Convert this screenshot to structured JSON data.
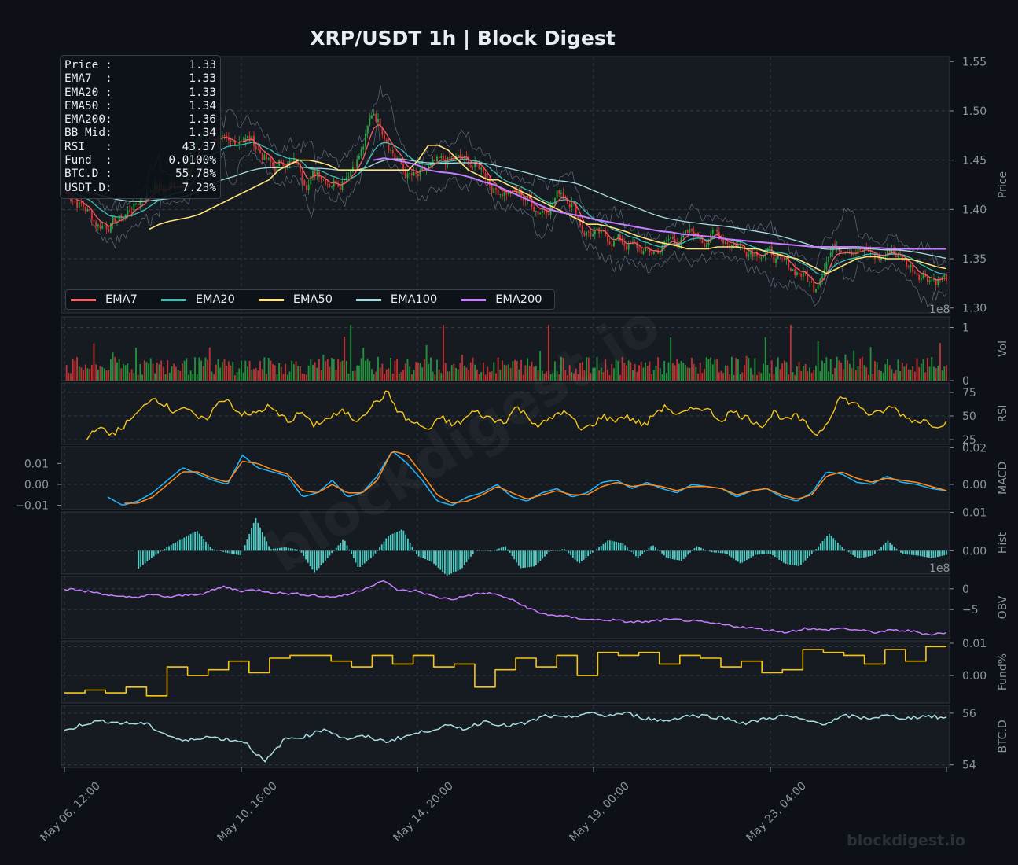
{
  "chart_data": {
    "type": "line",
    "title": "XRP/USDT  1h  |  Block Digest",
    "watermark": "blockdigest.io",
    "x_ticks": [
      "May 06, 12:00",
      "May 10, 16:00",
      "May 14, 20:00",
      "May 19, 00:00",
      "May 23, 04:00"
    ],
    "colors": {
      "background": "#0d1117",
      "panel": "#161b22",
      "grid": "#3a4150",
      "up": "#26a641",
      "down": "#da3633",
      "ema7": "#f85c64",
      "ema20": "#3dbfb0",
      "ema50": "#ffe27a",
      "ema100": "#a8dde0",
      "ema200": "#c77dff",
      "rsi": "#f5c518",
      "macd": "#1fb6ff",
      "signal": "#ff8c1a",
      "hist": "#4ecdc4",
      "obv": "#c77dff",
      "funding": "#f5c518",
      "btcd": "#a8dde0"
    },
    "info": [
      {
        "label": "Price :",
        "value": "1.33"
      },
      {
        "label": "EMA7  :",
        "value": "1.33"
      },
      {
        "label": "EMA20 :",
        "value": "1.33"
      },
      {
        "label": "EMA50 :",
        "value": "1.34"
      },
      {
        "label": "EMA200:",
        "value": "1.36"
      },
      {
        "label": "BB Mid:",
        "value": "1.34"
      },
      {
        "label": "RSI   :",
        "value": "43.37"
      },
      {
        "label": "Fund  :",
        "value": "0.0100%"
      },
      {
        "label": "BTC.D :",
        "value": "55.78%"
      },
      {
        "label": "USDT.D:",
        "value": "7.23%"
      }
    ],
    "legend": [
      "EMA7",
      "EMA20",
      "EMA50",
      "EMA100",
      "EMA200"
    ],
    "panels": {
      "price": {
        "ylabel": "Price",
        "ticks": [
          "1.55",
          "1.50",
          "1.45",
          "1.40",
          "1.35",
          "1.30"
        ],
        "ylim": [
          1.295,
          1.555
        ],
        "offset": "1e8",
        "close": [
          1.42,
          1.41,
          1.4,
          1.385,
          1.385,
          1.39,
          1.4,
          1.41,
          1.425,
          1.42,
          1.425,
          1.435,
          1.47,
          1.48,
          1.47,
          1.46,
          1.475,
          1.47,
          1.455,
          1.44,
          1.45,
          1.445,
          1.43,
          1.44,
          1.43,
          1.43,
          1.445,
          1.46,
          1.5,
          1.48,
          1.455,
          1.435,
          1.43,
          1.44,
          1.445,
          1.45,
          1.45,
          1.445,
          1.44,
          1.42,
          1.42,
          1.415,
          1.41,
          1.4,
          1.405,
          1.42,
          1.41,
          1.38,
          1.375,
          1.37,
          1.37,
          1.365,
          1.36,
          1.355,
          1.36,
          1.37,
          1.37,
          1.375,
          1.37,
          1.375,
          1.37,
          1.365,
          1.36,
          1.36,
          1.355,
          1.345,
          1.34,
          1.335,
          1.32,
          1.35,
          1.365,
          1.365,
          1.36,
          1.355,
          1.35,
          1.36,
          1.35,
          1.34,
          1.335,
          1.33,
          1.33
        ],
        "ema50": [
          1.38,
          1.385,
          1.388,
          1.39,
          1.392,
          1.395,
          1.4,
          1.405,
          1.41,
          1.415,
          1.42,
          1.425,
          1.43,
          1.44,
          1.445,
          1.45,
          1.45,
          1.448,
          1.445,
          1.44,
          1.44,
          1.44,
          1.44,
          1.44,
          1.44,
          1.44,
          1.44,
          1.45,
          1.465,
          1.465,
          1.46,
          1.45,
          1.44,
          1.435,
          1.43,
          1.43,
          1.425,
          1.42,
          1.415,
          1.41,
          1.405,
          1.4,
          1.395,
          1.39,
          1.385,
          1.385,
          1.383,
          1.38,
          1.377,
          1.373,
          1.37,
          1.367,
          1.365,
          1.363,
          1.36,
          1.36,
          1.36,
          1.362,
          1.362,
          1.362,
          1.36,
          1.36,
          1.357,
          1.355,
          1.352,
          1.35,
          1.345,
          1.34,
          1.335,
          1.34,
          1.345,
          1.35,
          1.352,
          1.352,
          1.35,
          1.35,
          1.35,
          1.348,
          1.345,
          1.342,
          1.34
        ],
        "ema200": [
          null,
          null,
          null,
          null,
          null,
          null,
          null,
          null,
          null,
          null,
          null,
          null,
          null,
          null,
          null,
          null,
          null,
          null,
          null,
          null,
          null,
          null,
          null,
          null,
          null,
          null,
          null,
          null,
          1.45,
          1.452,
          1.45,
          1.448,
          1.445,
          1.44,
          1.438,
          1.437,
          1.435,
          1.432,
          1.428,
          1.425,
          1.42,
          1.415,
          1.41,
          1.405,
          1.4,
          1.397,
          1.395,
          1.393,
          1.39,
          1.388,
          1.386,
          1.384,
          1.382,
          1.38,
          1.378,
          1.377,
          1.375,
          1.374,
          1.373,
          1.372,
          1.37,
          1.369,
          1.368,
          1.367,
          1.366,
          1.365,
          1.364,
          1.363,
          1.362,
          1.362,
          1.362,
          1.362,
          1.362,
          1.361,
          1.361,
          1.36,
          1.36,
          1.36,
          1.36,
          1.36,
          1.36
        ]
      },
      "volume": {
        "ylabel": "Vol",
        "ticks": [
          "1",
          "0"
        ],
        "ylim": [
          0,
          1.2
        ]
      },
      "rsi": {
        "ylabel": "RSI",
        "ticks": [
          "75",
          "50",
          "25"
        ],
        "ylim": [
          20,
          85
        ],
        "values": [
          25,
          40,
          30,
          35,
          45,
          55,
          70,
          65,
          55,
          60,
          50,
          45,
          60,
          70,
          55,
          50,
          55,
          60,
          50,
          45,
          55,
          40,
          45,
          50,
          55,
          45,
          55,
          65,
          75,
          55,
          45,
          40,
          35,
          50,
          40,
          45,
          55,
          50,
          45,
          45,
          60,
          50,
          40,
          45,
          55,
          50,
          35,
          40,
          50,
          45,
          50,
          45,
          40,
          55,
          60,
          50,
          55,
          60,
          55,
          45,
          55,
          50,
          45,
          40,
          55,
          45,
          50,
          40,
          30,
          45,
          70,
          65,
          60,
          50,
          55,
          60,
          50,
          45,
          45,
          40,
          43
        ]
      },
      "macd": {
        "ylabel": "MACD",
        "left_ticks": [
          "0.01",
          "0.00",
          "−0.01"
        ],
        "right_ticks": [
          "0.02",
          "0.00"
        ],
        "ylim": [
          -0.012,
          0.018
        ],
        "macd": [
          -0.006,
          -0.01,
          -0.008,
          -0.004,
          0.002,
          0.008,
          0.005,
          0.002,
          0.0,
          0.014,
          0.008,
          0.006,
          0.004,
          -0.006,
          -0.004,
          0.002,
          -0.006,
          -0.004,
          0.004,
          0.016,
          0.01,
          0.002,
          -0.008,
          -0.01,
          -0.006,
          -0.004,
          0.0,
          -0.006,
          -0.008,
          -0.004,
          -0.002,
          -0.006,
          -0.004,
          0.001,
          0.002,
          -0.002,
          0.001,
          -0.002,
          -0.004,
          0.0,
          -0.001,
          -0.002,
          -0.006,
          -0.003,
          -0.002,
          -0.006,
          -0.008,
          -0.004,
          0.006,
          0.005,
          0.001,
          0.0,
          0.004,
          0.001,
          0.0,
          -0.002,
          -0.003
        ],
        "signal": [
          null,
          -0.009,
          -0.009,
          -0.006,
          0.0,
          0.006,
          0.006,
          0.003,
          0.001,
          0.011,
          0.01,
          0.007,
          0.005,
          -0.003,
          -0.004,
          0.0,
          -0.004,
          -0.004,
          0.002,
          0.016,
          0.014,
          0.005,
          -0.005,
          -0.009,
          -0.008,
          -0.005,
          -0.001,
          -0.004,
          -0.007,
          -0.005,
          -0.003,
          -0.005,
          -0.005,
          -0.001,
          0.001,
          -0.001,
          0.0,
          -0.001,
          -0.003,
          -0.001,
          -0.001,
          -0.002,
          -0.005,
          -0.003,
          -0.002,
          -0.005,
          -0.007,
          -0.005,
          0.004,
          0.006,
          0.003,
          0.001,
          0.003,
          0.002,
          0.001,
          -0.001,
          -0.003
        ]
      },
      "hist": {
        "ylabel": "Hist",
        "ticks": [
          "0.01",
          "0.00"
        ],
        "offset": "1e8",
        "ylim": [
          -0.006,
          0.01
        ]
      },
      "obv": {
        "ylabel": "OBV",
        "ticks": [
          "0",
          "−5"
        ],
        "ylim": [
          -12,
          3
        ],
        "values": [
          0,
          -0.5,
          -1,
          -2,
          -2,
          -1.5,
          -2,
          -1.5,
          -1,
          0.5,
          -0.5,
          -0.3,
          -1,
          -1.2,
          -1.5,
          -2,
          -1.5,
          0,
          2,
          -0.5,
          -0.5,
          -2,
          -2.5,
          -1.5,
          -1,
          -2,
          -4,
          -6,
          -6.5,
          -7,
          -7.5,
          -7.5,
          -8,
          -8,
          -7.5,
          -7.5,
          -8,
          -8.5,
          -9,
          -9.5,
          -10,
          -10.5,
          -9.5,
          -10,
          -9.5,
          -10,
          -10.5,
          -10,
          -10.2,
          -11,
          -10.6
        ]
      },
      "funding": {
        "ylabel": "Fund%",
        "ticks": [
          "0.01",
          "0.00"
        ],
        "ylim": [
          -0.0095,
          0.012
        ],
        "values": [
          -0.006,
          -0.005,
          -0.006,
          -0.004,
          -0.007,
          0.003,
          0.0,
          0.002,
          0.005,
          0.001,
          0.006,
          0.007,
          0.007,
          0.005,
          0.003,
          0.007,
          0.004,
          0.007,
          0.003,
          0.004,
          -0.004,
          0.002,
          0.006,
          0.003,
          0.007,
          0.0,
          0.008,
          0.007,
          0.008,
          0.004,
          0.007,
          0.006,
          0.003,
          0.005,
          0.001,
          0.002,
          0.009,
          0.008,
          0.007,
          0.004,
          0.009,
          0.005,
          0.01,
          0.01
        ]
      },
      "btcd": {
        "ylabel": "BTC.D",
        "ticks": [
          "56",
          "54"
        ],
        "ylim": [
          53.9,
          56.3
        ],
        "values": [
          55.3,
          55.6,
          55.7,
          55.6,
          55.6,
          55.2,
          54.9,
          55.1,
          55.0,
          54.9,
          54.1,
          55.0,
          55.1,
          55.4,
          55.0,
          55.1,
          54.9,
          55.1,
          55.3,
          55.5,
          55.4,
          55.7,
          55.5,
          55.6,
          55.9,
          55.8,
          56.0,
          55.9,
          56.0,
          55.8,
          55.7,
          55.9,
          55.9,
          55.8,
          55.6,
          55.8,
          55.9,
          55.7,
          55.6,
          55.9,
          55.8,
          55.9,
          55.8,
          55.9,
          55.8
        ]
      }
    }
  }
}
